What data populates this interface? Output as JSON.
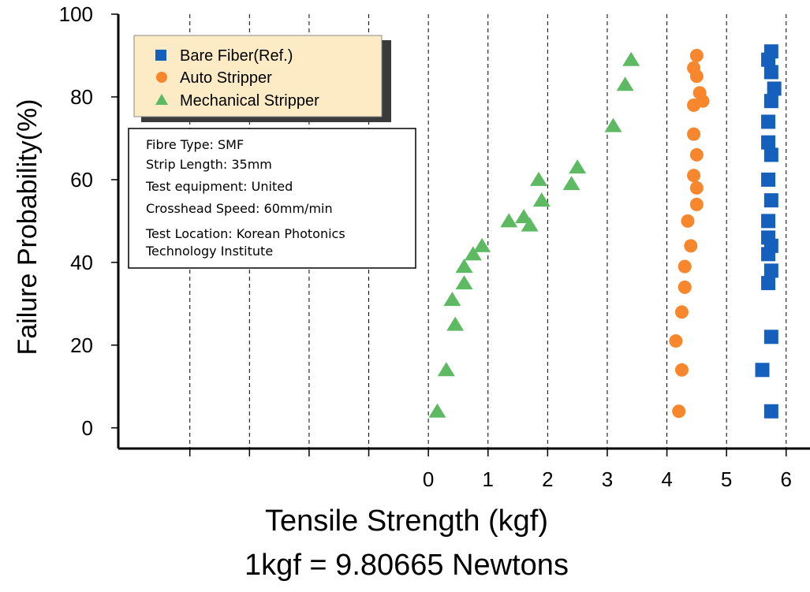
{
  "chart_data": {
    "type": "scatter",
    "xlabel": "Tensile Strength (kgf)",
    "xlabel_note": "1kgf = 9.80665 Newtons",
    "ylabel": "Failure Probability(%)",
    "ylim": [
      -5,
      100
    ],
    "xlim": [
      -5.2,
      6.4
    ],
    "y_ticks": [
      "0",
      "20",
      "40",
      "60",
      "80",
      "100"
    ],
    "x_tick_labels": [
      "0",
      "1",
      "2",
      "3",
      "4",
      "5",
      "6"
    ],
    "x_tick_values": [
      0,
      1,
      2,
      3,
      4,
      5,
      6
    ],
    "gridlines_x": [
      -4,
      -3,
      -2,
      -1,
      0,
      1,
      2,
      3,
      4,
      5,
      6
    ],
    "grid": "vertical dashed",
    "legend_position": "top-left",
    "series": [
      {
        "name": "Bare Fiber(Ref.)",
        "marker": "square",
        "color": "#1560bd",
        "points": [
          [
            5.75,
            91
          ],
          [
            5.7,
            89
          ],
          [
            5.75,
            86
          ],
          [
            5.8,
            82
          ],
          [
            5.75,
            79
          ],
          [
            5.7,
            74
          ],
          [
            5.7,
            69
          ],
          [
            5.75,
            66
          ],
          [
            5.7,
            60
          ],
          [
            5.75,
            55
          ],
          [
            5.7,
            50
          ],
          [
            5.7,
            46
          ],
          [
            5.75,
            44
          ],
          [
            5.7,
            42
          ],
          [
            5.75,
            38
          ],
          [
            5.7,
            35
          ],
          [
            5.75,
            22
          ],
          [
            5.6,
            14
          ],
          [
            5.75,
            4
          ]
        ]
      },
      {
        "name": "Auto Stripper",
        "marker": "circle",
        "color": "#f7862d",
        "points": [
          [
            4.5,
            90
          ],
          [
            4.45,
            87
          ],
          [
            4.5,
            85
          ],
          [
            4.55,
            81
          ],
          [
            4.6,
            79
          ],
          [
            4.45,
            78
          ],
          [
            4.45,
            71
          ],
          [
            4.5,
            66
          ],
          [
            4.45,
            61
          ],
          [
            4.5,
            58
          ],
          [
            4.5,
            54
          ],
          [
            4.35,
            50
          ],
          [
            4.4,
            44
          ],
          [
            4.3,
            39
          ],
          [
            4.3,
            34
          ],
          [
            4.25,
            28
          ],
          [
            4.15,
            21
          ],
          [
            4.25,
            14
          ],
          [
            4.2,
            4
          ]
        ]
      },
      {
        "name": "Mechanical Stripper",
        "marker": "triangle",
        "color": "#5dba63",
        "points": [
          [
            3.4,
            89
          ],
          [
            3.3,
            83
          ],
          [
            3.1,
            73
          ],
          [
            2.5,
            63
          ],
          [
            2.4,
            59
          ],
          [
            1.85,
            60
          ],
          [
            1.9,
            55
          ],
          [
            1.6,
            51
          ],
          [
            1.7,
            49
          ],
          [
            1.35,
            50
          ],
          [
            0.9,
            44
          ],
          [
            0.75,
            42
          ],
          [
            0.6,
            39
          ],
          [
            0.6,
            35
          ],
          [
            0.4,
            31
          ],
          [
            0.45,
            25
          ],
          [
            0.3,
            14
          ],
          [
            0.15,
            4
          ]
        ]
      }
    ]
  },
  "info_box": {
    "lines": [
      "Fibre Type:  SMF",
      "Strip Length: 35mm",
      "Test equipment: United",
      "Crosshead Speed: 60mm/min",
      "Test Location: Korean Photonics",
      "Technology Institute"
    ]
  }
}
